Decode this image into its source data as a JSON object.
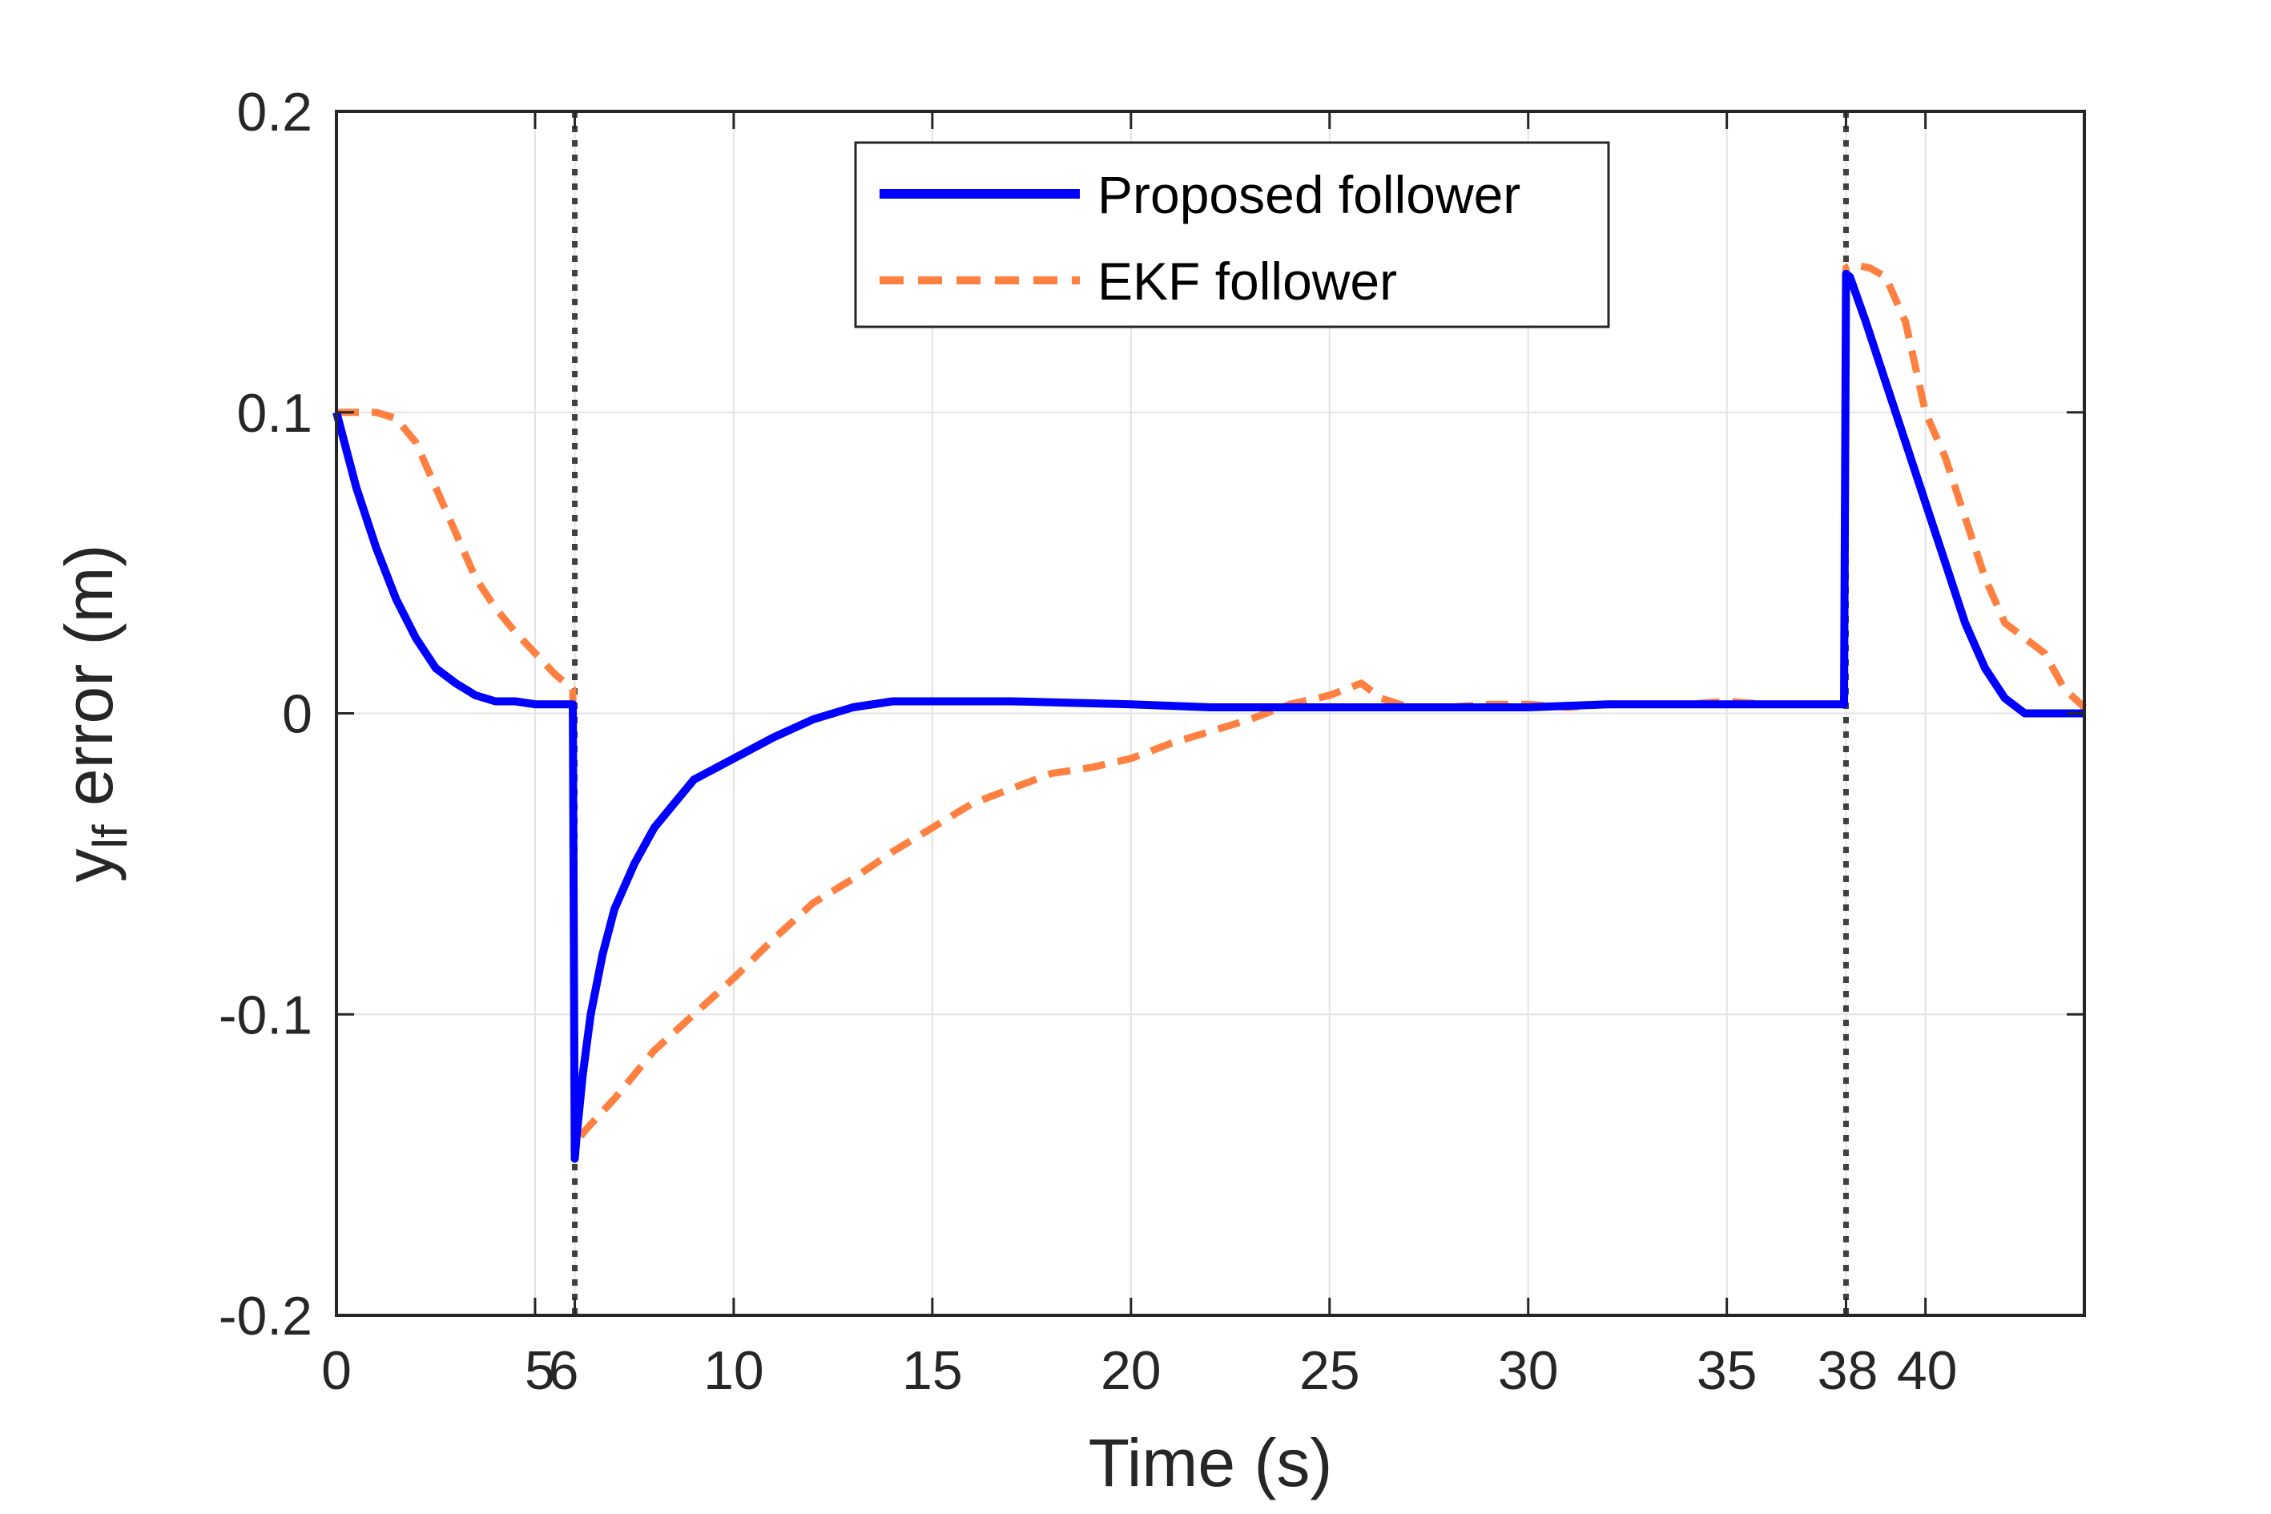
{
  "chart_data": {
    "type": "line",
    "title": "",
    "xlabel": "Time (s)",
    "ylabel": {
      "base": "y",
      "subscript": "lf",
      "rest": " error (m)"
    },
    "xlim": [
      0,
      44
    ],
    "ylim": [
      -0.2,
      0.2
    ],
    "grid": true,
    "legend_position": "top-center",
    "x_ticks": [
      {
        "value": 0,
        "label": "0"
      },
      {
        "value": 5,
        "label": "5"
      },
      {
        "value": 6,
        "label": "6"
      },
      {
        "value": 10,
        "label": "10"
      },
      {
        "value": 15,
        "label": "15"
      },
      {
        "value": 20,
        "label": "20"
      },
      {
        "value": 25,
        "label": "25"
      },
      {
        "value": 30,
        "label": "30"
      },
      {
        "value": 35,
        "label": "35"
      },
      {
        "value": 38,
        "label": "38"
      },
      {
        "value": 40,
        "label": "40"
      }
    ],
    "y_ticks": [
      {
        "value": 0.2,
        "label": "0.2"
      },
      {
        "value": 0.1,
        "label": "0.1"
      },
      {
        "value": 0,
        "label": "0"
      },
      {
        "value": -0.1,
        "label": "-0.1"
      },
      {
        "value": -0.2,
        "label": "-0.2"
      }
    ],
    "vertical_markers": [
      6,
      38
    ],
    "series": [
      {
        "name": "Proposed follower",
        "color": "#0000ff",
        "style": "solid",
        "x": [
          0,
          0.5,
          1,
          1.5,
          2,
          2.5,
          3,
          3.5,
          4,
          4.5,
          5,
          5.5,
          5.95,
          6.0,
          6.05,
          6.2,
          6.4,
          6.7,
          7,
          7.5,
          8,
          8.5,
          9,
          10,
          11,
          12,
          13,
          14,
          15,
          17,
          20,
          22,
          25,
          27,
          30,
          32,
          35,
          36,
          37,
          37.95,
          38.0,
          38.1,
          38.5,
          39,
          39.5,
          40,
          40.5,
          41,
          41.5,
          42,
          42.5,
          43,
          43.5,
          44
        ],
        "values": [
          0.1,
          0.075,
          0.055,
          0.038,
          0.025,
          0.015,
          0.01,
          0.006,
          0.004,
          0.004,
          0.003,
          0.003,
          0.003,
          -0.148,
          -0.14,
          -0.12,
          -0.1,
          -0.08,
          -0.065,
          -0.05,
          -0.038,
          -0.03,
          -0.022,
          -0.015,
          -0.008,
          -0.002,
          0.002,
          0.004,
          0.004,
          0.004,
          0.003,
          0.002,
          0.002,
          0.002,
          0.002,
          0.003,
          0.003,
          0.003,
          0.003,
          0.003,
          0.146,
          0.145,
          0.13,
          0.11,
          0.09,
          0.07,
          0.05,
          0.03,
          0.015,
          0.005,
          0.0,
          0.0,
          0.0,
          0.0
        ]
      },
      {
        "name": "EKF follower",
        "color": "#ff8040",
        "style": "dashed",
        "x": [
          0,
          0.5,
          1,
          1.5,
          2,
          2.5,
          3,
          3.5,
          4,
          4.5,
          5,
          5.5,
          5.95,
          6.0,
          6.05,
          6.3,
          7,
          8,
          9,
          10,
          11,
          12,
          13,
          14,
          15,
          16,
          17,
          18,
          19,
          20,
          21,
          22,
          23,
          24,
          25,
          25.8,
          26.3,
          27,
          28,
          29,
          30,
          31,
          32,
          33,
          34,
          35,
          36,
          37,
          37.95,
          38.0,
          38.2,
          38.6,
          39,
          39.5,
          40,
          40.5,
          41,
          41.5,
          42,
          42.5,
          43,
          43.5,
          44
        ],
        "values": [
          0.1,
          0.1,
          0.1,
          0.098,
          0.09,
          0.075,
          0.06,
          0.045,
          0.035,
          0.027,
          0.02,
          0.013,
          0.008,
          -0.14,
          -0.142,
          -0.138,
          -0.128,
          -0.112,
          -0.1,
          -0.088,
          -0.075,
          -0.063,
          -0.055,
          -0.046,
          -0.038,
          -0.03,
          -0.025,
          -0.02,
          -0.018,
          -0.015,
          -0.01,
          -0.006,
          -0.002,
          0.003,
          0.006,
          0.01,
          0.005,
          0.002,
          0.002,
          0.003,
          0.003,
          0.002,
          0.003,
          0.003,
          0.003,
          0.004,
          0.003,
          0.003,
          0.003,
          0.148,
          0.149,
          0.148,
          0.145,
          0.13,
          0.1,
          0.085,
          0.065,
          0.045,
          0.03,
          0.025,
          0.02,
          0.008,
          0.002
        ]
      }
    ]
  }
}
